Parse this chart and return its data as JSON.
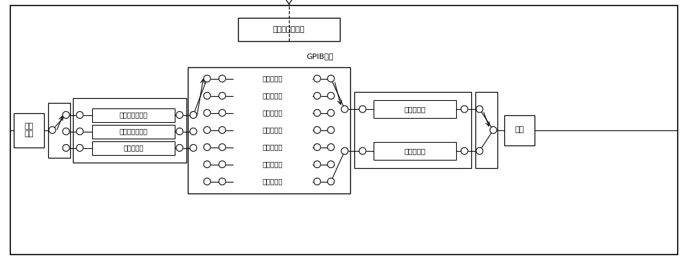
{
  "bg_color": "#ffffff",
  "line_color": "#000000",
  "title_dsp": "数字信号处理器",
  "label_gpib": "GPIB总线",
  "label_input": "被检\n信号",
  "label_terminal": "终端",
  "filter_labels": [
    "第一高通滤波器",
    "第二高通滤波器",
    "低通滤波器"
  ],
  "notch_labels": [
    "第一陷波器",
    "第二陷波器",
    "第三陷波器",
    "第四陷波器",
    "第五陷波器",
    "第六陷波器",
    "第七陷波器"
  ],
  "amp_labels": [
    "第一放大器",
    "第二放大器"
  ],
  "figsize": [
    10.0,
    3.76
  ],
  "dpi": 100
}
